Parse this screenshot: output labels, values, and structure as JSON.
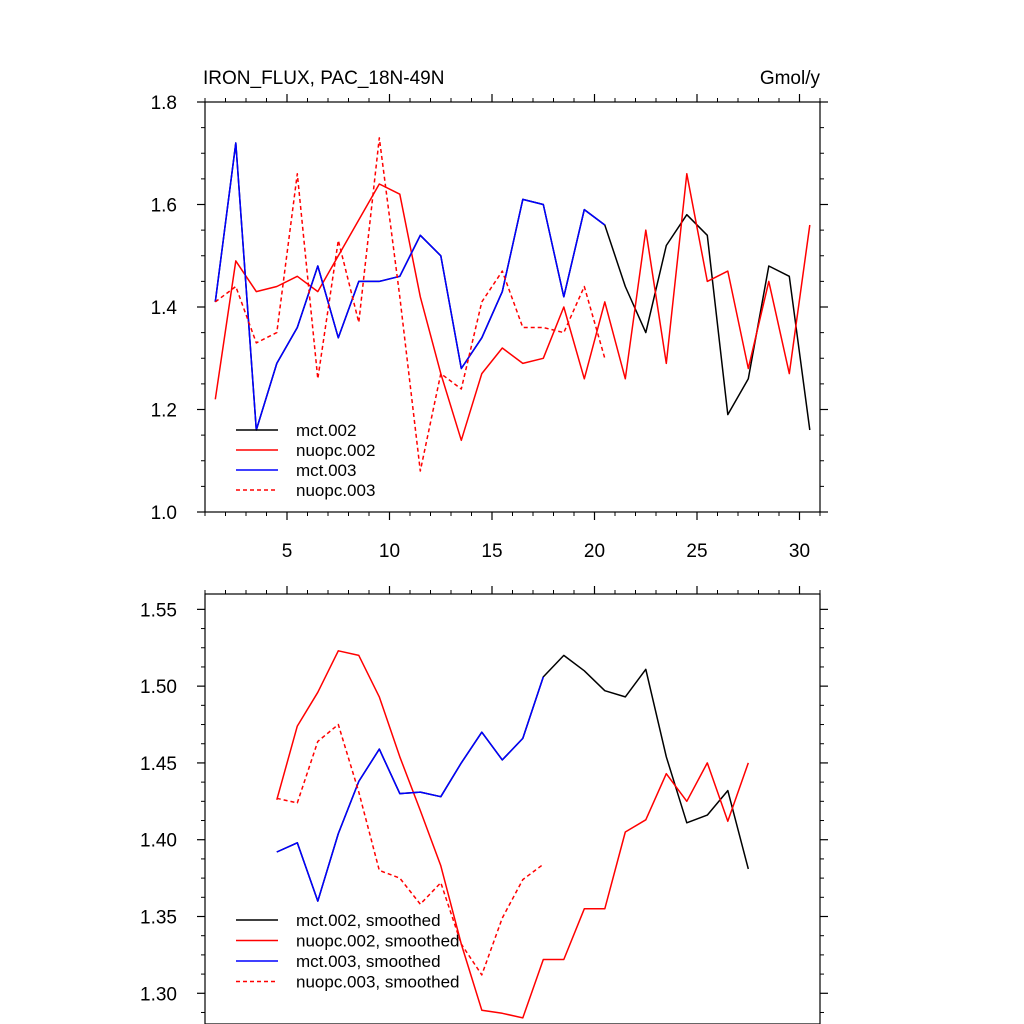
{
  "chart_data": [
    {
      "type": "line",
      "title": "IRON_FLUX, PAC_18N-49N",
      "units": "Gmol/y",
      "xlabel": "",
      "ylabel": "",
      "xlim": [
        1,
        31
      ],
      "ylim": [
        1.0,
        1.8
      ],
      "xticks": [
        5,
        10,
        15,
        20,
        25,
        30
      ],
      "xtick_labels": [
        "5",
        "10",
        "15",
        "20",
        "25",
        "30"
      ],
      "yticks": [
        1.0,
        1.2,
        1.4,
        1.6,
        1.8
      ],
      "ytick_labels": [
        "1.0",
        "1.2",
        "1.4",
        "1.6",
        "1.8"
      ],
      "legend_placement": "lower-left",
      "grid": false,
      "series": [
        {
          "name": "mct.002",
          "color": "#000000",
          "dash": "solid",
          "x": [
            1.5,
            2.5,
            3.5,
            4.5,
            5.5,
            6.5,
            7.5,
            8.5,
            9.5,
            10.5,
            11.5,
            12.5,
            13.5,
            14.5,
            15.5,
            16.5,
            17.5,
            18.5,
            19.5,
            20.5,
            21.5,
            22.5,
            23.5,
            24.5,
            25.5,
            26.5,
            27.5,
            28.5,
            29.5,
            30.5
          ],
          "values": [
            1.41,
            1.72,
            1.16,
            1.29,
            1.36,
            1.48,
            1.34,
            1.45,
            1.45,
            1.46,
            1.54,
            1.5,
            1.28,
            1.34,
            1.43,
            1.61,
            1.6,
            1.42,
            1.59,
            1.56,
            1.44,
            1.35,
            1.52,
            1.58,
            1.54,
            1.19,
            1.26,
            1.48,
            1.46,
            1.16
          ]
        },
        {
          "name": "nuopc.002",
          "color": "#ff0000",
          "dash": "solid",
          "x": [
            1.5,
            2.5,
            3.5,
            4.5,
            5.5,
            6.5,
            7.5,
            8.5,
            9.5,
            10.5,
            11.5,
            12.5,
            13.5,
            14.5,
            15.5,
            16.5,
            17.5,
            18.5,
            19.5,
            20.5,
            21.5,
            22.5,
            23.5,
            24.5,
            25.5,
            26.5,
            27.5,
            28.5,
            29.5,
            30.5
          ],
          "values": [
            1.22,
            1.49,
            1.43,
            1.44,
            1.46,
            1.43,
            1.5,
            1.57,
            1.64,
            1.62,
            1.42,
            1.27,
            1.14,
            1.27,
            1.32,
            1.29,
            1.3,
            1.4,
            1.26,
            1.41,
            1.26,
            1.55,
            1.29,
            1.66,
            1.45,
            1.47,
            1.28,
            1.45,
            1.27,
            1.56
          ]
        },
        {
          "name": "mct.003",
          "color": "#0000ff",
          "dash": "solid",
          "x": [
            1.5,
            2.5,
            3.5,
            4.5,
            5.5,
            6.5,
            7.5,
            8.5,
            9.5,
            10.5,
            11.5,
            12.5,
            13.5,
            14.5,
            15.5,
            16.5,
            17.5,
            18.5,
            19.5,
            20.5
          ],
          "values": [
            1.41,
            1.72,
            1.16,
            1.29,
            1.36,
            1.48,
            1.34,
            1.45,
            1.45,
            1.46,
            1.54,
            1.5,
            1.28,
            1.34,
            1.43,
            1.61,
            1.6,
            1.42,
            1.59,
            1.56
          ]
        },
        {
          "name": "nuopc.003",
          "color": "#ff0000",
          "dash": "dashed",
          "x": [
            1.5,
            2.5,
            3.5,
            4.5,
            5.5,
            6.5,
            7.5,
            8.5,
            9.5,
            10.5,
            11.5,
            12.5,
            13.5,
            14.5,
            15.5,
            16.5,
            17.5,
            18.5,
            19.5,
            20.5
          ],
          "values": [
            1.41,
            1.44,
            1.33,
            1.35,
            1.66,
            1.26,
            1.53,
            1.37,
            1.73,
            1.42,
            1.08,
            1.27,
            1.24,
            1.41,
            1.47,
            1.36,
            1.36,
            1.35,
            1.44,
            1.3
          ]
        }
      ]
    },
    {
      "type": "line",
      "title": "",
      "xlabel": "",
      "ylabel": "",
      "xlim": [
        1,
        31
      ],
      "ylim": [
        1.28,
        1.56
      ],
      "xticks": [
        5,
        10,
        15,
        20,
        25,
        30
      ],
      "yticks": [
        1.3,
        1.35,
        1.4,
        1.45,
        1.5,
        1.55
      ],
      "ytick_labels": [
        "1.30",
        "1.35",
        "1.40",
        "1.45",
        "1.50",
        "1.55"
      ],
      "legend_placement": "lower-left",
      "grid": false,
      "series": [
        {
          "name": "mct.002, smoothed",
          "color": "#000000",
          "dash": "solid",
          "x": [
            4.5,
            5.5,
            6.5,
            7.5,
            8.5,
            9.5,
            10.5,
            11.5,
            12.5,
            13.5,
            14.5,
            15.5,
            16.5,
            17.5,
            18.5,
            19.5,
            20.5,
            21.5,
            22.5,
            23.5,
            24.5,
            25.5,
            26.5,
            27.5
          ],
          "values": [
            1.392,
            1.398,
            1.36,
            1.404,
            1.438,
            1.459,
            1.43,
            1.431,
            1.428,
            1.45,
            1.47,
            1.452,
            1.466,
            1.506,
            1.52,
            1.51,
            1.497,
            1.493,
            1.511,
            1.454,
            1.411,
            1.416,
            1.432,
            1.381
          ]
        },
        {
          "name": "nuopc.002, smoothed",
          "color": "#ff0000",
          "dash": "solid",
          "x": [
            4.5,
            5.5,
            6.5,
            7.5,
            8.5,
            9.5,
            10.5,
            11.5,
            12.5,
            13.5,
            14.5,
            15.5,
            16.5,
            17.5,
            18.5,
            19.5,
            20.5,
            21.5,
            22.5,
            23.5,
            24.5,
            25.5,
            26.5,
            27.5
          ],
          "values": [
            1.426,
            1.474,
            1.496,
            1.523,
            1.52,
            1.493,
            1.454,
            1.419,
            1.383,
            1.332,
            1.289,
            1.287,
            1.284,
            1.322,
            1.322,
            1.355,
            1.355,
            1.405,
            1.413,
            1.443,
            1.425,
            1.45,
            1.412,
            1.45
          ]
        },
        {
          "name": "mct.003, smoothed",
          "color": "#0000ff",
          "dash": "solid",
          "x": [
            4.5,
            5.5,
            6.5,
            7.5,
            8.5,
            9.5,
            10.5,
            11.5,
            12.5,
            13.5,
            14.5,
            15.5,
            16.5,
            17.5
          ],
          "values": [
            1.392,
            1.398,
            1.36,
            1.404,
            1.438,
            1.459,
            1.43,
            1.431,
            1.428,
            1.45,
            1.47,
            1.452,
            1.466,
            1.506
          ]
        },
        {
          "name": "nuopc.003, smoothed",
          "color": "#ff0000",
          "dash": "dashed",
          "x": [
            4.5,
            5.5,
            6.5,
            7.5,
            8.5,
            9.5,
            10.5,
            11.5,
            12.5,
            13.5,
            14.5,
            15.5,
            16.5,
            17.5
          ],
          "values": [
            1.427,
            1.424,
            1.464,
            1.475,
            1.431,
            1.38,
            1.375,
            1.358,
            1.372,
            1.332,
            1.312,
            1.349,
            1.374,
            1.384
          ]
        }
      ]
    }
  ]
}
